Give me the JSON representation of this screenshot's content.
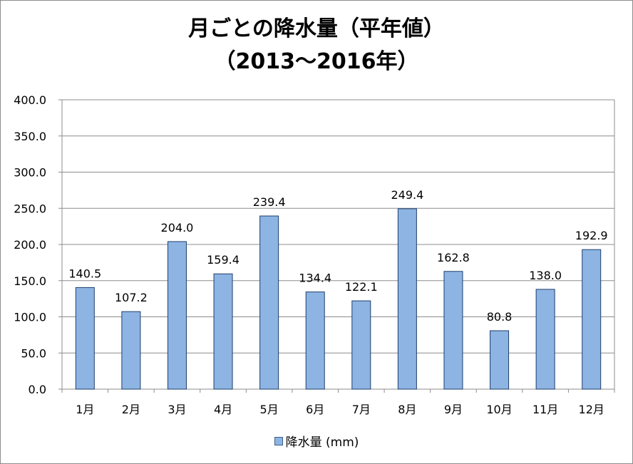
{
  "chart_data": {
    "type": "bar",
    "title_line1": "月ごとの降水量（平年値）",
    "title_line2": "（2013～2016年）",
    "categories": [
      "1月",
      "2月",
      "3月",
      "4月",
      "5月",
      "6月",
      "7月",
      "8月",
      "9月",
      "10月",
      "11月",
      "12月"
    ],
    "series": [
      {
        "name": "降水量 (mm)",
        "values": [
          140.5,
          107.2,
          204.0,
          159.4,
          239.4,
          134.4,
          122.1,
          249.4,
          162.8,
          80.8,
          138.0,
          192.9
        ],
        "value_labels": [
          "140.5",
          "107.2",
          "204.0",
          "159.4",
          "239.4",
          "134.4",
          "122.1",
          "249.4",
          "162.8",
          "80.8",
          "138.0",
          "192.9"
        ]
      }
    ],
    "ylim": [
      0,
      400
    ],
    "yticks": [
      0,
      50,
      100,
      150,
      200,
      250,
      300,
      350,
      400
    ],
    "ytick_labels": [
      "0.0",
      "50.0",
      "100.0",
      "150.0",
      "200.0",
      "250.0",
      "300.0",
      "350.0",
      "400.0"
    ],
    "xlabel": "",
    "ylabel": "",
    "grid": true,
    "legend_position": "bottom",
    "colors": {
      "bar_fill": "#8db4e2",
      "bar_stroke": "#1f3f6e",
      "grid": "#8c8c8c",
      "axis": "#8c8c8c"
    }
  }
}
